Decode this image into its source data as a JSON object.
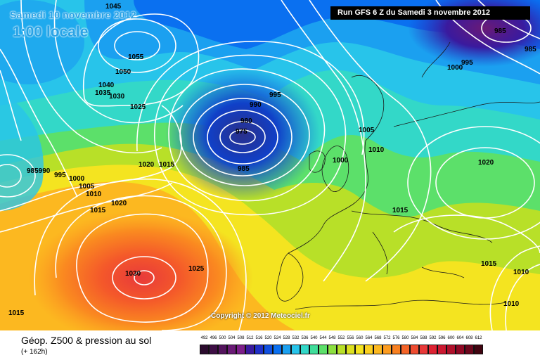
{
  "header": {
    "date": "Samedi 10 novembre 2012",
    "time": "1:00 locale",
    "run": "Run GFS 6 Z du Samedi 3 novembre 2012"
  },
  "copyright": "Copyright © 2012 Meteociel.fr",
  "footer": {
    "title": "Géop. Z500 & pression au sol",
    "subtitle": "(+ 162h)"
  },
  "legend": {
    "values": [
      "492",
      "496",
      "500",
      "504",
      "508",
      "512",
      "516",
      "520",
      "524",
      "528",
      "532",
      "536",
      "540",
      "544",
      "548",
      "552",
      "556",
      "560",
      "564",
      "568",
      "572",
      "576",
      "580",
      "584",
      "588",
      "592",
      "596",
      "600",
      "604",
      "608",
      "612"
    ],
    "colors": [
      "#2b0b2e",
      "#3e0f45",
      "#54145d",
      "#6a1a76",
      "#7d1e8a",
      "#3a1a9e",
      "#2030c8",
      "#1050e0",
      "#0a70f0",
      "#1ba0f0",
      "#28c4ea",
      "#33d8c8",
      "#3fdd9a",
      "#5ce06a",
      "#8ce040",
      "#b8e028",
      "#dce020",
      "#f4e420",
      "#fcd020",
      "#fcb820",
      "#fc9c20",
      "#f88020",
      "#f46428",
      "#ee4c30",
      "#e83838",
      "#dd2232",
      "#cc1830",
      "#b0102a",
      "#900824",
      "#6c061c",
      "#400410"
    ]
  },
  "pressure_labels": [
    "1045",
    "1055",
    "1050",
    "1040",
    "1035",
    "1030",
    "1025",
    "995",
    "990",
    "980",
    "975",
    "985",
    "1005",
    "1010",
    "1000",
    "1020",
    "1015",
    "985990",
    "995",
    "1000",
    "1005",
    "1010",
    "1015",
    "1020",
    "1030",
    "1025",
    "1015",
    "1015",
    "1020",
    "1015",
    "1010",
    "1010",
    "985",
    "985",
    "1000",
    "995"
  ]
}
